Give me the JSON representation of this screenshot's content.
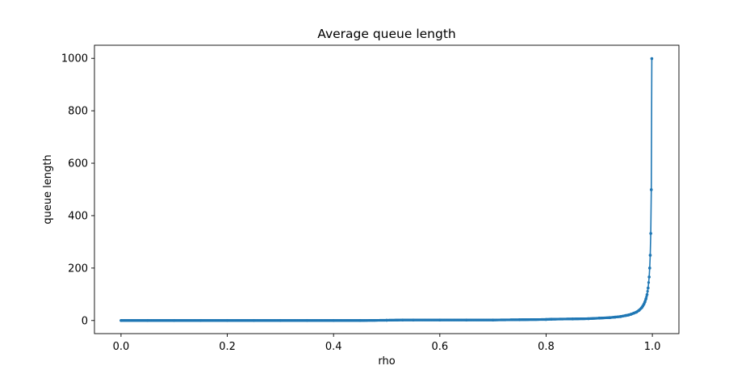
{
  "chart_data": {
    "type": "line",
    "title": "Average queue length",
    "xlabel": "rho",
    "ylabel": "queue length",
    "xlim": [
      -0.05,
      1.05
    ],
    "ylim": [
      -50,
      1050
    ],
    "xticks": [
      0.0,
      0.2,
      0.4,
      0.6,
      0.8,
      1.0
    ],
    "xtick_labels": [
      "0.0",
      "0.2",
      "0.4",
      "0.6",
      "0.8",
      "1.0"
    ],
    "yticks": [
      0,
      200,
      400,
      600,
      800,
      1000
    ],
    "ytick_labels": [
      "0",
      "200",
      "400",
      "600",
      "800",
      "1000"
    ],
    "grid": false,
    "series": [
      {
        "color": "#1f77b4",
        "marker": "dot",
        "x": [
          0.0,
          0.05,
          0.1,
          0.15,
          0.2,
          0.25,
          0.3,
          0.35,
          0.4,
          0.45,
          0.5,
          0.53,
          0.55,
          0.6,
          0.65,
          0.7,
          0.75,
          0.8,
          0.81,
          0.85,
          0.88,
          0.9,
          0.92,
          0.93,
          0.94,
          0.95,
          0.955,
          0.96,
          0.965,
          0.97,
          0.975,
          0.98,
          0.982,
          0.984,
          0.986,
          0.988,
          0.99,
          0.992,
          0.994,
          0.995,
          0.996,
          0.997,
          0.998,
          0.999
        ],
        "y": [
          0,
          0,
          0,
          0,
          0,
          0,
          0,
          0,
          0,
          0,
          1,
          2,
          2,
          2,
          2,
          2,
          3,
          4,
          5,
          6,
          7,
          9,
          11,
          13,
          15,
          19,
          21,
          24,
          28,
          32,
          39,
          49,
          55,
          62,
          71,
          83,
          99,
          124,
          166,
          200,
          249,
          332,
          499,
          999
        ]
      }
    ]
  }
}
